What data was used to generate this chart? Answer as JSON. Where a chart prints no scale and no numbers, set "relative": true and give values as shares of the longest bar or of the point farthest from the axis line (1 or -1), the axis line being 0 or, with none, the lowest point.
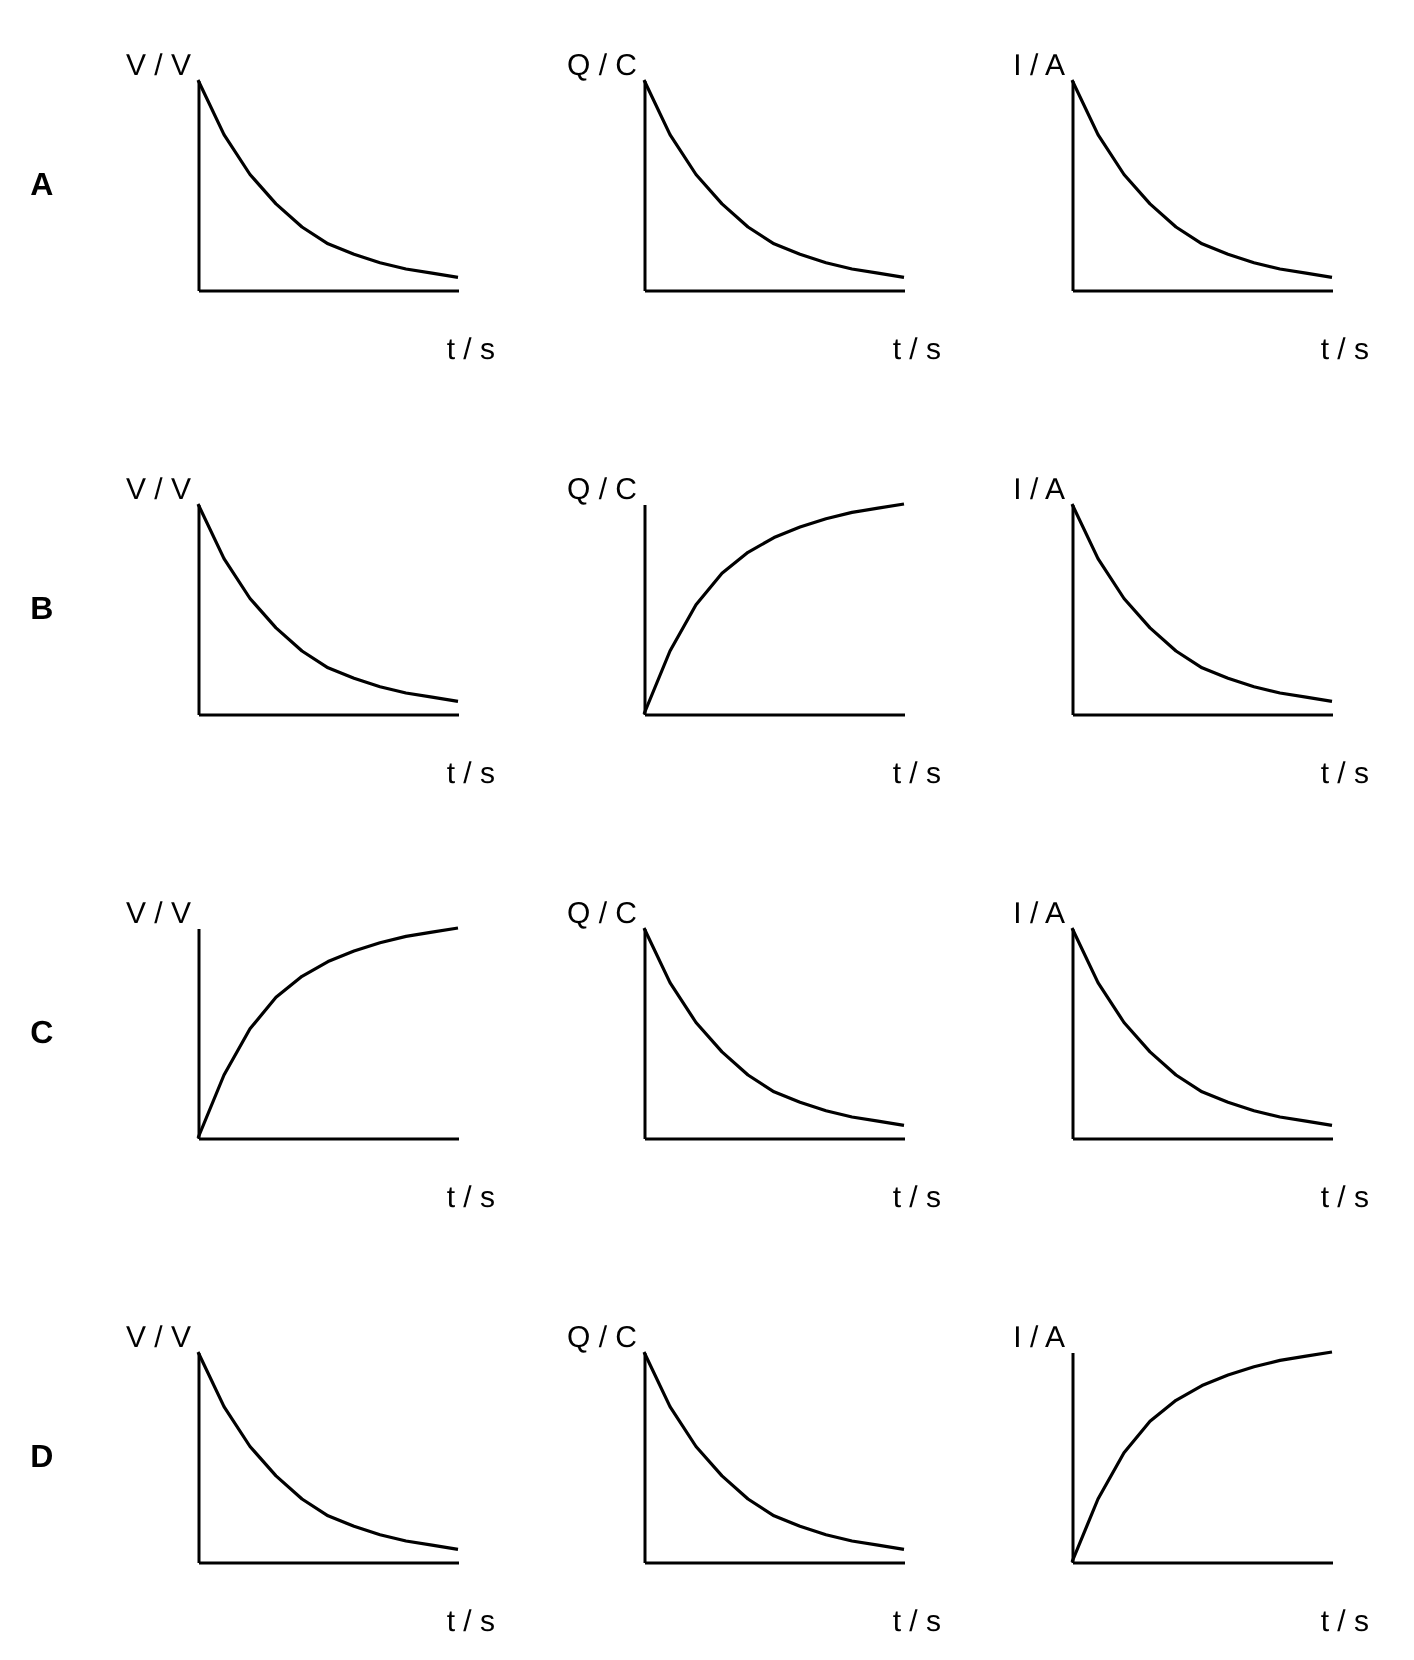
{
  "chart_data": [
    {
      "type": "line",
      "title": "A",
      "relative": true,
      "ylabel": "V / V",
      "xlabel": "t / s",
      "categories": [
        null,
        null,
        null,
        null,
        null,
        null,
        null,
        null,
        null,
        null,
        null
      ],
      "values": [
        1,
        0.74,
        0.55,
        0.41,
        0.3,
        0.22,
        0.17,
        0.13,
        0.1,
        0.08,
        0.06
      ],
      "color": "#000000"
    },
    {
      "type": "line",
      "relative": true,
      "ylabel": "Q / C",
      "xlabel": "t / s",
      "categories": [
        null,
        null,
        null,
        null,
        null,
        null,
        null,
        null,
        null,
        null,
        null
      ],
      "values": [
        1,
        0.74,
        0.55,
        0.41,
        0.3,
        0.22,
        0.17,
        0.13,
        0.1,
        0.08,
        0.06
      ],
      "color": "#000000"
    },
    {
      "type": "line",
      "relative": true,
      "ylabel": "I / A",
      "xlabel": "t / s",
      "categories": [
        null,
        null,
        null,
        null,
        null,
        null,
        null,
        null,
        null,
        null,
        null
      ],
      "values": [
        1,
        0.74,
        0.55,
        0.41,
        0.3,
        0.22,
        0.17,
        0.13,
        0.1,
        0.08,
        0.06
      ],
      "color": "#000000"
    },
    {
      "type": "line",
      "title": "B",
      "relative": true,
      "ylabel": "V / V",
      "xlabel": "t / s",
      "categories": [
        null,
        null,
        null,
        null,
        null,
        null,
        null,
        null,
        null,
        null,
        null
      ],
      "values": [
        1,
        0.74,
        0.55,
        0.41,
        0.3,
        0.22,
        0.17,
        0.13,
        0.1,
        0.08,
        0.06
      ],
      "color": "#000000"
    },
    {
      "type": "line",
      "relative": true,
      "ylabel": "Q / C",
      "xlabel": "t / s",
      "categories": [
        null,
        null,
        null,
        null,
        null,
        null,
        null,
        null,
        null,
        null,
        null
      ],
      "values": [
        0,
        0.3,
        0.52,
        0.67,
        0.77,
        0.84,
        0.89,
        0.93,
        0.96,
        0.98,
        1
      ],
      "color": "#000000"
    },
    {
      "type": "line",
      "relative": true,
      "ylabel": "I / A",
      "xlabel": "t / s",
      "categories": [
        null,
        null,
        null,
        null,
        null,
        null,
        null,
        null,
        null,
        null,
        null
      ],
      "values": [
        1,
        0.74,
        0.55,
        0.41,
        0.3,
        0.22,
        0.17,
        0.13,
        0.1,
        0.08,
        0.06
      ],
      "color": "#000000"
    },
    {
      "type": "line",
      "title": "C",
      "relative": true,
      "ylabel": "V / V",
      "xlabel": "t / s",
      "categories": [
        null,
        null,
        null,
        null,
        null,
        null,
        null,
        null,
        null,
        null,
        null
      ],
      "values": [
        0,
        0.3,
        0.52,
        0.67,
        0.77,
        0.84,
        0.89,
        0.93,
        0.96,
        0.98,
        1
      ],
      "color": "#000000"
    },
    {
      "type": "line",
      "relative": true,
      "ylabel": "Q / C",
      "xlabel": "t / s",
      "categories": [
        null,
        null,
        null,
        null,
        null,
        null,
        null,
        null,
        null,
        null,
        null
      ],
      "values": [
        1,
        0.74,
        0.55,
        0.41,
        0.3,
        0.22,
        0.17,
        0.13,
        0.1,
        0.08,
        0.06
      ],
      "color": "#000000"
    },
    {
      "type": "line",
      "relative": true,
      "ylabel": "I / A",
      "xlabel": "t / s",
      "categories": [
        null,
        null,
        null,
        null,
        null,
        null,
        null,
        null,
        null,
        null,
        null
      ],
      "values": [
        1,
        0.74,
        0.55,
        0.41,
        0.3,
        0.22,
        0.17,
        0.13,
        0.1,
        0.08,
        0.06
      ],
      "color": "#000000"
    },
    {
      "type": "line",
      "title": "D",
      "relative": true,
      "ylabel": "V / V",
      "xlabel": "t / s",
      "categories": [
        null,
        null,
        null,
        null,
        null,
        null,
        null,
        null,
        null,
        null,
        null
      ],
      "values": [
        1,
        0.74,
        0.55,
        0.41,
        0.3,
        0.22,
        0.17,
        0.13,
        0.1,
        0.08,
        0.06
      ],
      "color": "#000000"
    },
    {
      "type": "line",
      "relative": true,
      "ylabel": "Q / C",
      "xlabel": "t / s",
      "categories": [
        null,
        null,
        null,
        null,
        null,
        null,
        null,
        null,
        null,
        null,
        null
      ],
      "values": [
        1,
        0.74,
        0.55,
        0.41,
        0.3,
        0.22,
        0.17,
        0.13,
        0.1,
        0.08,
        0.06
      ],
      "color": "#000000"
    },
    {
      "type": "line",
      "relative": true,
      "ylabel": "I / A",
      "xlabel": "t / s",
      "categories": [
        null,
        null,
        null,
        null,
        null,
        null,
        null,
        null,
        null,
        null,
        null
      ],
      "values": [
        0,
        0.3,
        0.52,
        0.67,
        0.77,
        0.84,
        0.89,
        0.93,
        0.96,
        0.98,
        1
      ],
      "color": "#000000"
    }
  ]
}
